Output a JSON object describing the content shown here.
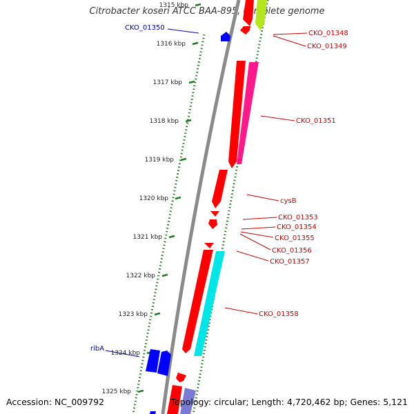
{
  "title": "Citrobacter koseri ATCC BAA-895, complete genome",
  "footer": {
    "accession": "Accession: NC_009792",
    "topology": "Topology: circular; Length: 4,720,462 bp; Genes: 5,121"
  },
  "colors": {
    "red_gene": "#ff0000",
    "magenta_gene": "#ff1a8c",
    "cyan_gene": "#00e5e5",
    "blue_gene": "#0000ff",
    "lavender_gene": "#7b7bd6",
    "lime_gene": "#b5e61d",
    "backbone": "#888888",
    "tick": "#1f7a1f",
    "label_red": "#cc0000",
    "label_blue": "#0000b0"
  },
  "ruler": {
    "ticks": [
      "1315 kbp",
      "1316 kbp",
      "1317 kbp",
      "1318 kbp",
      "1319 kbp",
      "1320 kbp",
      "1321 kbp",
      "1322 kbp",
      "1323 kbp",
      "1324 kbp",
      "1325 kbp"
    ]
  },
  "gene_labels": [
    {
      "text": "CKO_01350",
      "color": "blue"
    },
    {
      "text": "CKO_01348",
      "color": "red"
    },
    {
      "text": "CKO_01349",
      "color": "red"
    },
    {
      "text": "CKO_01351",
      "color": "red"
    },
    {
      "text": "cysB",
      "color": "red"
    },
    {
      "text": "CKO_01353",
      "color": "red"
    },
    {
      "text": "CKO_01354",
      "color": "red"
    },
    {
      "text": "CKO_01355",
      "color": "red"
    },
    {
      "text": "CKO_01356",
      "color": "red"
    },
    {
      "text": "CKO_01357",
      "color": "red"
    },
    {
      "text": "CKO_01358",
      "color": "red"
    },
    {
      "text": "ribA",
      "color": "blue"
    }
  ]
}
